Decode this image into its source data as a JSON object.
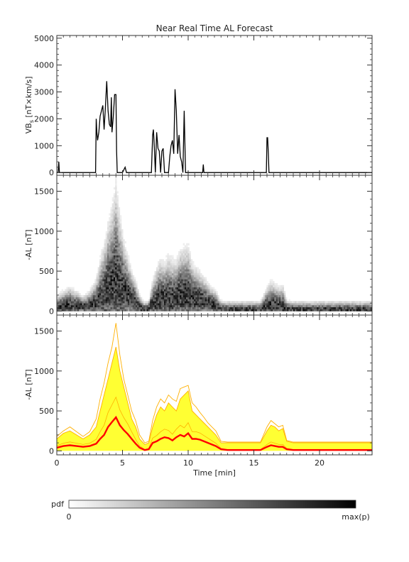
{
  "chart_data": [
    {
      "type": "line",
      "title": "Near Real Time AL Forecast",
      "ylabel_main": "VB",
      "ylabel_sub": "s",
      "ylabel_rest": " [nT×km/s]",
      "ylim": [
        -100,
        5100
      ],
      "yticks": [
        0,
        1000,
        2000,
        3000,
        4000,
        5000
      ],
      "xlim": [
        0,
        24
      ],
      "series": [
        {
          "x": [
            0,
            0.1,
            0.15,
            0.2,
            0.25,
            0.3,
            2.95,
            3.0,
            3.05,
            3.1,
            3.2,
            3.3,
            3.4,
            3.5,
            3.6,
            3.7,
            3.8,
            3.9,
            4.0,
            4.1,
            4.15,
            4.2,
            4.3,
            4.4,
            4.5,
            4.55,
            4.6,
            4.7,
            4.8,
            5.0,
            5.2,
            5.3,
            5.4,
            5.5,
            7.2,
            7.3,
            7.35,
            7.4,
            7.5,
            7.6,
            7.7,
            7.8,
            7.9,
            8.0,
            8.1,
            8.2,
            8.3,
            8.4,
            8.5,
            8.6,
            8.7,
            8.8,
            8.9,
            9.0,
            9.1,
            9.2,
            9.3,
            9.4,
            9.5,
            9.6,
            9.7,
            9.8,
            9.85,
            9.9,
            10.0,
            11.1,
            11.15,
            11.2,
            11.3,
            15.95,
            16.0,
            16.05,
            16.1,
            16.15,
            16.2,
            24
          ],
          "y": [
            0,
            0,
            400,
            0,
            0,
            0,
            0,
            2000,
            1500,
            1200,
            1500,
            2100,
            2300,
            2500,
            1600,
            2400,
            3400,
            2300,
            1800,
            1700,
            2800,
            1500,
            2100,
            2900,
            2900,
            800,
            0,
            0,
            0,
            0,
            200,
            0,
            0,
            0,
            0,
            1400,
            1600,
            1200,
            0,
            1500,
            900,
            800,
            0,
            800,
            900,
            0,
            0,
            0,
            0,
            600,
            1000,
            1200,
            700,
            3100,
            2300,
            700,
            1400,
            600,
            400,
            0,
            2300,
            0,
            0,
            0,
            0,
            0,
            300,
            0,
            0,
            0,
            1300,
            1300,
            700,
            0,
            0,
            0
          ]
        }
      ]
    },
    {
      "type": "heatmap",
      "ylabel": "-AL [nT]",
      "ylim": [
        -50,
        1700
      ],
      "yticks": [
        0,
        500,
        1000,
        1500
      ],
      "xlim": [
        0,
        24
      ]
    },
    {
      "type": "area",
      "ylabel": "-AL [nT]",
      "xlabel": "Time [min]",
      "ylim": [
        -50,
        1700
      ],
      "yticks": [
        0,
        500,
        1000,
        1500
      ],
      "xlim": [
        0,
        24
      ],
      "xticks": [
        0,
        5,
        10,
        15,
        20
      ],
      "colors": {
        "band": "#ffff33",
        "envelope": "#ffb000",
        "median": "#ff0000"
      },
      "x": [
        0,
        0.5,
        1,
        1.5,
        2,
        2.5,
        3,
        3.3,
        3.6,
        3.9,
        4.2,
        4.5,
        4.8,
        5.1,
        5.4,
        5.7,
        6.0,
        6.3,
        6.7,
        7.0,
        7.3,
        7.6,
        7.9,
        8.2,
        8.5,
        8.8,
        9.1,
        9.4,
        9.7,
        10.0,
        10.3,
        10.6,
        10.9,
        11.2,
        11.5,
        11.8,
        12.1,
        12.5,
        13.0,
        15.5,
        16.0,
        16.3,
        16.6,
        16.9,
        17.2,
        17.5,
        18.0,
        24
      ],
      "median": [
        40,
        60,
        70,
        60,
        50,
        60,
        90,
        150,
        200,
        300,
        360,
        420,
        320,
        260,
        210,
        150,
        90,
        40,
        10,
        20,
        100,
        120,
        150,
        170,
        160,
        130,
        170,
        200,
        180,
        220,
        150,
        150,
        140,
        120,
        100,
        80,
        60,
        20,
        10,
        10,
        50,
        70,
        60,
        50,
        50,
        20,
        10,
        10
      ],
      "upper": [
        150,
        220,
        250,
        200,
        150,
        200,
        300,
        500,
        700,
        900,
        1100,
        1300,
        1000,
        800,
        600,
        400,
        300,
        150,
        80,
        100,
        300,
        450,
        550,
        500,
        600,
        550,
        500,
        650,
        700,
        750,
        500,
        450,
        400,
        350,
        300,
        250,
        200,
        100,
        100,
        100,
        250,
        320,
        300,
        250,
        280,
        120,
        100,
        100
      ],
      "peak": [
        180,
        250,
        300,
        240,
        180,
        240,
        400,
        650,
        850,
        1100,
        1300,
        1600,
        1200,
        900,
        700,
        500,
        380,
        200,
        100,
        120,
        380,
        550,
        650,
        600,
        700,
        650,
        620,
        780,
        800,
        820,
        600,
        550,
        480,
        420,
        350,
        300,
        250,
        120,
        110,
        110,
        300,
        380,
        340,
        300,
        320,
        130,
        110,
        110
      ]
    }
  ],
  "colorbar": {
    "label": "pdf",
    "min_label": "0",
    "max_label": "max(p)"
  }
}
